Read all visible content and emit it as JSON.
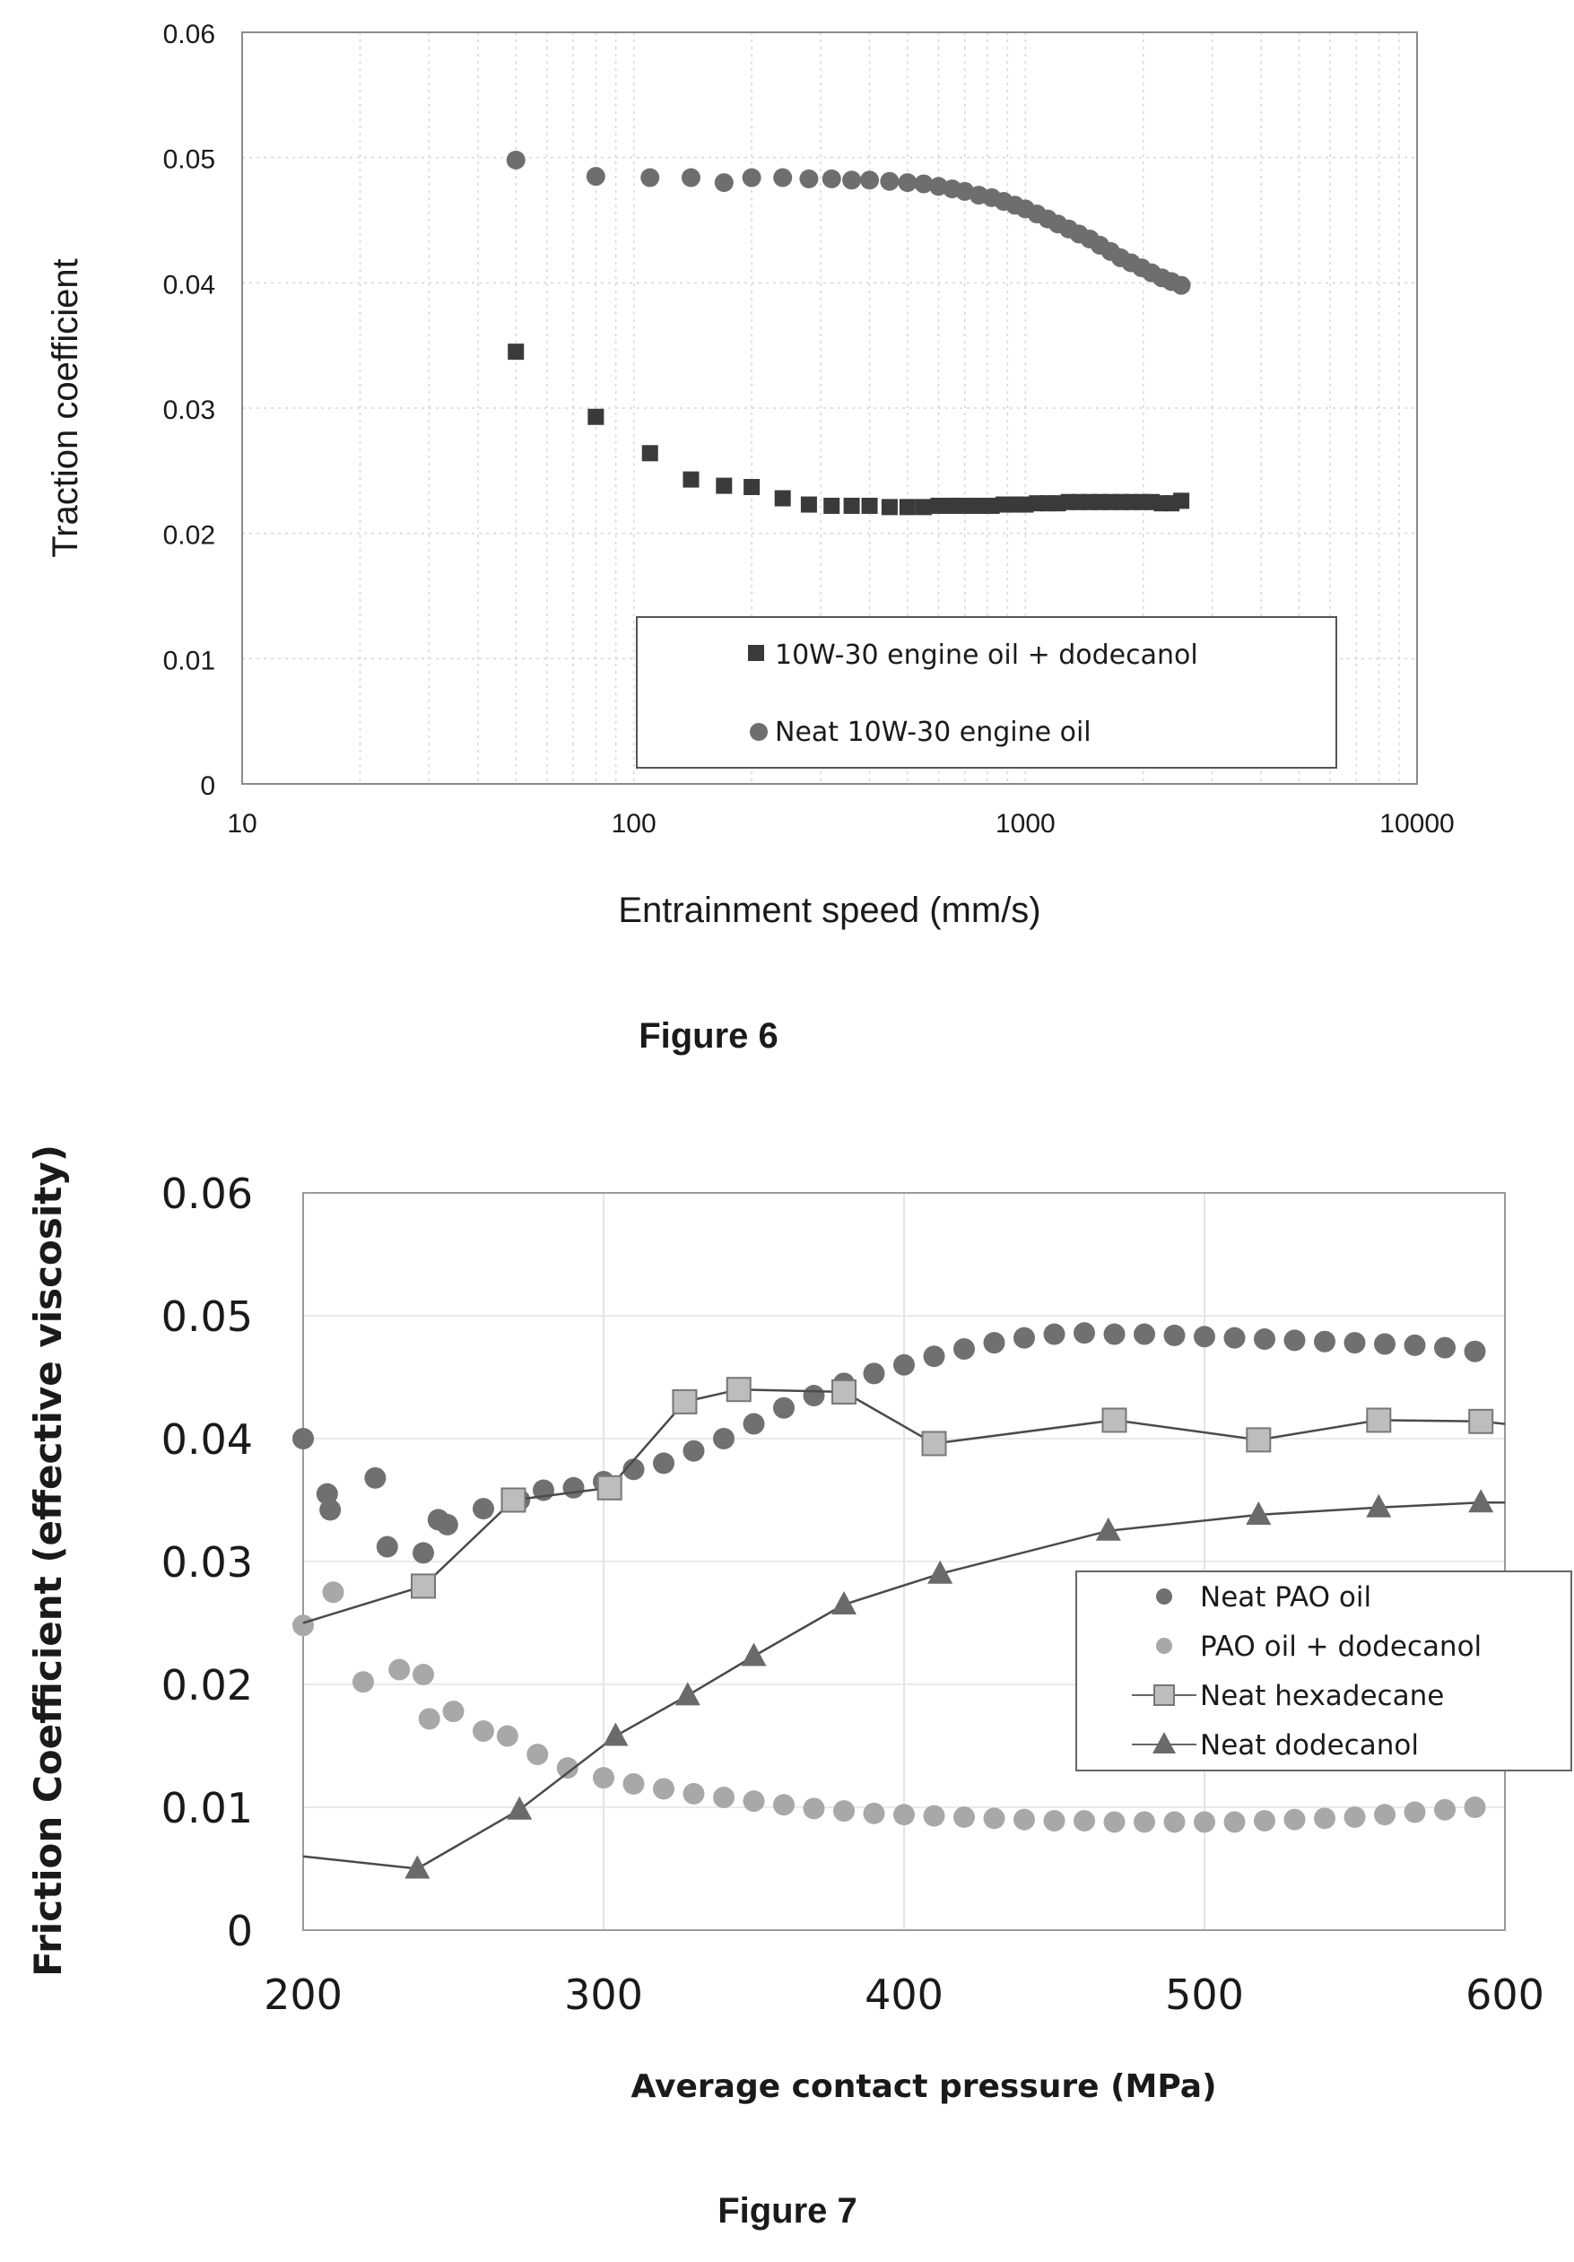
{
  "figures": [
    {
      "caption": "Figure 6",
      "chart_data": {
        "type": "scatter",
        "xscale": "log",
        "xlim": [
          10,
          10000
        ],
        "ylim": [
          0,
          0.06
        ],
        "xlabel": "Entrainment speed (mm/s)",
        "ylabel": "Traction coefficient",
        "title": "",
        "grid": true,
        "legend": "bottom-right",
        "xticks": [
          10,
          100,
          1000,
          10000
        ],
        "xtick_labels": [
          "10",
          "100",
          "1000",
          "10000"
        ],
        "yticks": [
          0,
          0.01,
          0.02,
          0.03,
          0.04,
          0.05,
          0.06
        ],
        "ytick_labels": [
          "0",
          "0.01",
          "0.02",
          "0.03",
          "0.04",
          "0.05",
          "0.06"
        ],
        "series": [
          {
            "name": "10W-30 engine oil + dodecanol",
            "marker": "square",
            "color": "#3a3a3a",
            "x": [
              50,
              80,
              110,
              140,
              170,
              200,
              240,
              280,
              320,
              360,
              400,
              450,
              500,
              550,
              600,
              650,
              700,
              760,
              820,
              880,
              940,
              1000,
              1070,
              1140,
              1210,
              1290,
              1370,
              1460,
              1550,
              1650,
              1750,
              1860,
              1980,
              2100,
              2230,
              2360,
              2500
            ],
            "y": [
              0.0345,
              0.0293,
              0.0264,
              0.0243,
              0.0238,
              0.0237,
              0.0228,
              0.0223,
              0.0222,
              0.0222,
              0.0222,
              0.0221,
              0.0221,
              0.0221,
              0.0222,
              0.0222,
              0.0222,
              0.0222,
              0.0222,
              0.0223,
              0.0223,
              0.0223,
              0.0224,
              0.0224,
              0.0224,
              0.0225,
              0.0225,
              0.0225,
              0.0225,
              0.0225,
              0.0225,
              0.0225,
              0.0225,
              0.0225,
              0.0224,
              0.0224,
              0.0226
            ]
          },
          {
            "name": "Neat 10W-30 engine oil",
            "marker": "circle",
            "color": "#6e6e6e",
            "x": [
              50,
              80,
              110,
              140,
              170,
              200,
              240,
              280,
              320,
              360,
              400,
              450,
              500,
              550,
              600,
              650,
              700,
              760,
              820,
              880,
              940,
              1000,
              1070,
              1140,
              1210,
              1290,
              1370,
              1460,
              1550,
              1650,
              1750,
              1860,
              1980,
              2100,
              2230,
              2360,
              2500
            ],
            "y": [
              0.0498,
              0.0485,
              0.0484,
              0.0484,
              0.048,
              0.0484,
              0.0484,
              0.0483,
              0.0483,
              0.0482,
              0.0482,
              0.0481,
              0.048,
              0.0479,
              0.0477,
              0.0475,
              0.0473,
              0.047,
              0.0468,
              0.0465,
              0.0462,
              0.0459,
              0.0455,
              0.0451,
              0.0447,
              0.0443,
              0.0439,
              0.0435,
              0.043,
              0.0425,
              0.042,
              0.0416,
              0.0412,
              0.0408,
              0.0404,
              0.0401,
              0.0398
            ]
          }
        ]
      }
    },
    {
      "caption": "Figure 7",
      "chart_data": {
        "type": "scatter",
        "xlim": [
          200,
          600
        ],
        "ylim": [
          0,
          0.06
        ],
        "xlabel": "Average contact pressure (MPa)",
        "ylabel": "Friction Coefficient (effective viscosity)",
        "title": "",
        "grid": true,
        "legend": "right",
        "xticks": [
          200,
          300,
          400,
          500,
          600
        ],
        "xtick_labels": [
          "200",
          "300",
          "400",
          "500",
          "600"
        ],
        "yticks": [
          0,
          0.01,
          0.02,
          0.03,
          0.04,
          0.05,
          0.06
        ],
        "ytick_labels": [
          "0",
          "0.01",
          "0.02",
          "0.03",
          "0.04",
          "0.05",
          "0.06"
        ],
        "series": [
          {
            "name": "Neat PAO oil",
            "marker": "circle",
            "color": "#707070",
            "x": [
              200,
              208,
              209,
              224,
              228,
              240,
              245,
              248,
              260,
              272,
              280,
              290,
              300,
              310,
              320,
              330,
              340,
              350,
              360,
              370,
              380,
              390,
              400,
              410,
              420,
              430,
              440,
              450,
              460,
              470,
              480,
              490,
              500,
              510,
              520,
              530,
              540,
              550,
              560,
              570,
              580,
              590
            ],
            "y": [
              0.04,
              0.0355,
              0.0342,
              0.0368,
              0.0312,
              0.0307,
              0.0334,
              0.033,
              0.0343,
              0.035,
              0.0358,
              0.036,
              0.0365,
              0.0375,
              0.038,
              0.039,
              0.04,
              0.0412,
              0.0425,
              0.0435,
              0.0445,
              0.0453,
              0.046,
              0.0467,
              0.0473,
              0.0478,
              0.0482,
              0.0485,
              0.0486,
              0.0485,
              0.0485,
              0.0484,
              0.0483,
              0.0482,
              0.0481,
              0.048,
              0.0479,
              0.0478,
              0.0477,
              0.0476,
              0.0474,
              0.0471
            ]
          },
          {
            "name": "PAO oil + dodecanol",
            "marker": "circle",
            "color": "#a8a8a8",
            "x": [
              200,
              210,
              220,
              232,
              240,
              242,
              250,
              260,
              268,
              278,
              288,
              300,
              310,
              320,
              330,
              340,
              350,
              360,
              370,
              380,
              390,
              400,
              410,
              420,
              430,
              440,
              450,
              460,
              470,
              480,
              490,
              500,
              510,
              520,
              530,
              540,
              550,
              560,
              570,
              580,
              590
            ],
            "y": [
              0.0248,
              0.0275,
              0.0202,
              0.0212,
              0.0208,
              0.0172,
              0.0178,
              0.0162,
              0.0158,
              0.0143,
              0.0132,
              0.0124,
              0.0119,
              0.0115,
              0.0111,
              0.0108,
              0.0105,
              0.0102,
              0.0099,
              0.0097,
              0.0095,
              0.0094,
              0.0093,
              0.0092,
              0.0091,
              0.009,
              0.0089,
              0.0089,
              0.0088,
              0.0088,
              0.0088,
              0.0088,
              0.0088,
              0.0089,
              0.009,
              0.0091,
              0.0092,
              0.0094,
              0.0096,
              0.0098,
              0.01
            ]
          },
          {
            "name": "Neat hexadecane",
            "marker": "square",
            "color": "#8f8f8f",
            "line": true,
            "x": [
              200,
              240,
              270,
              302,
              327,
              345,
              380,
              410,
              470,
              518,
              558,
              592,
              600
            ],
            "y": [
              0.025,
              0.028,
              0.035,
              0.036,
              0.043,
              0.044,
              0.0438,
              0.0396,
              0.0415,
              0.0399,
              0.0415,
              0.0414,
              0.0412
            ]
          },
          {
            "name": "Neat dodecanol",
            "marker": "triangle",
            "color": "#6a6a6a",
            "line": true,
            "x": [
              200,
              238,
              272,
              304,
              328,
              350,
              380,
              412,
              468,
              518,
              558,
              592,
              600
            ],
            "y": [
              0.006,
              0.005,
              0.0098,
              0.0158,
              0.0191,
              0.0223,
              0.0265,
              0.029,
              0.0325,
              0.0338,
              0.0344,
              0.0348,
              0.0348
            ]
          }
        ]
      }
    }
  ]
}
